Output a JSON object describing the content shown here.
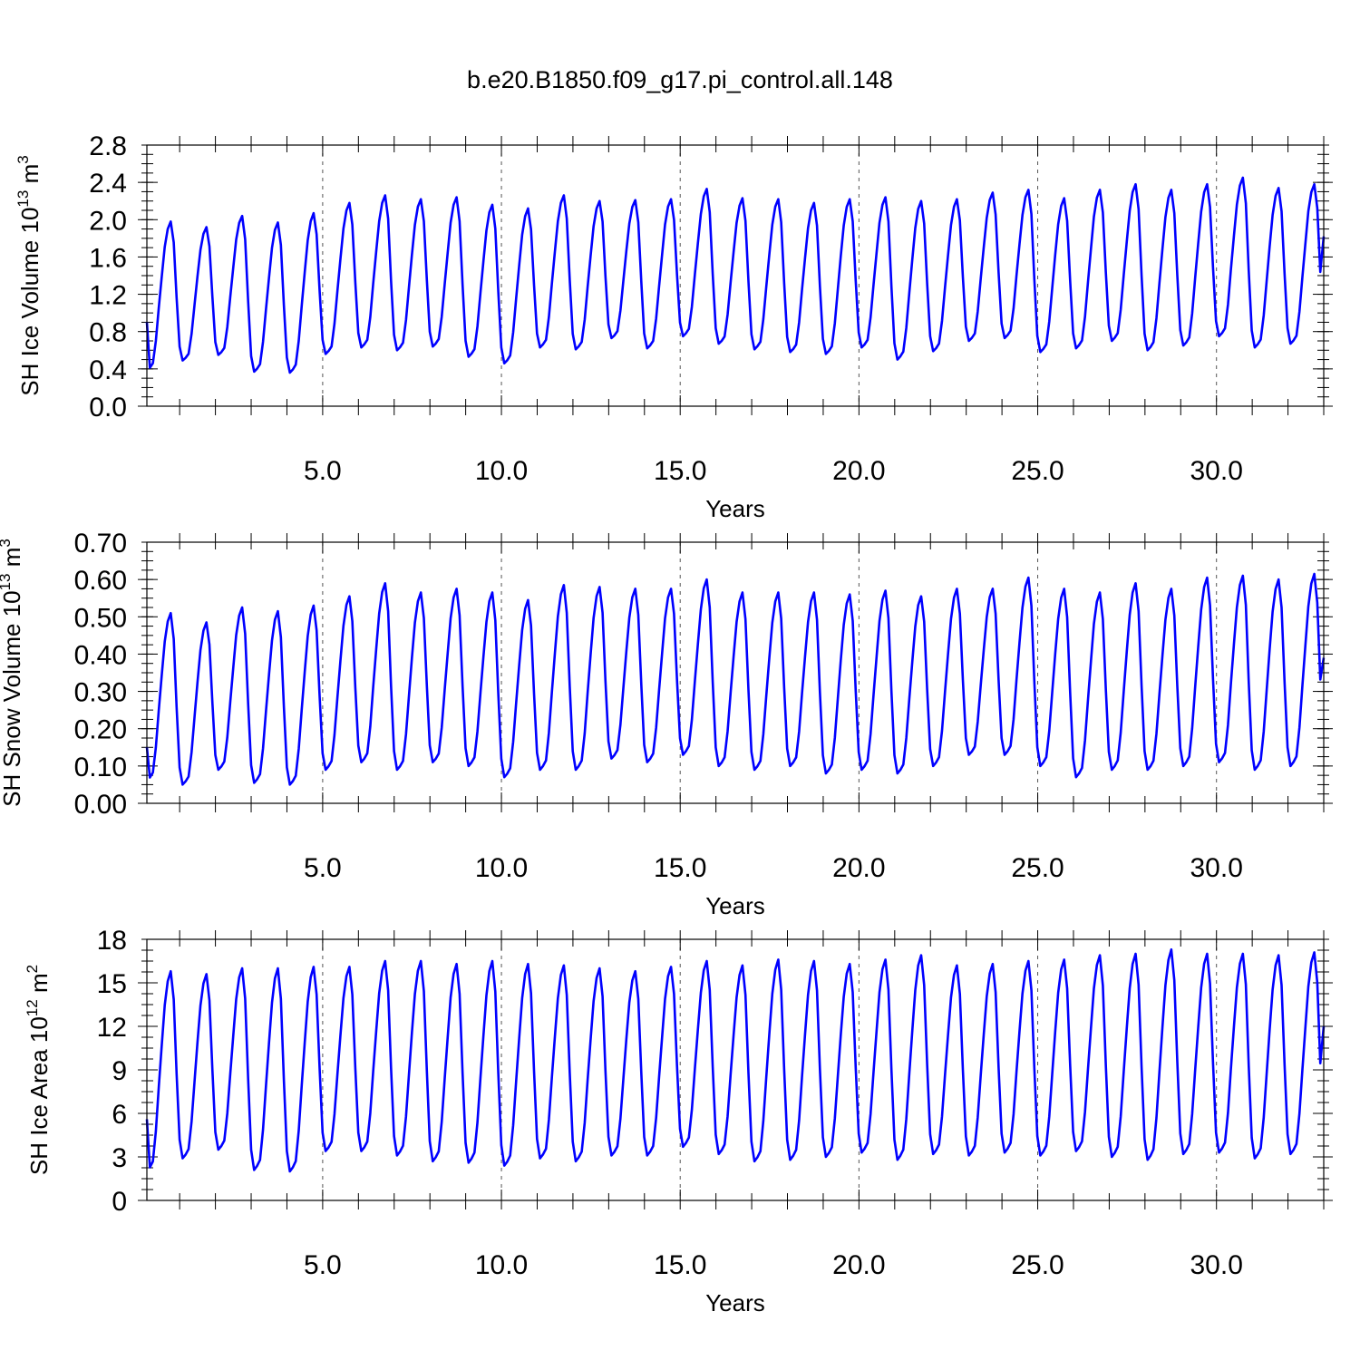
{
  "chart_data": [
    {
      "type": "line",
      "title": "b.e20.B1850.f09_g17.pi_control.all.148",
      "xlabel": "Years",
      "ylabel": "SH Ice Volume 10",
      "ylabel_exp": "13",
      "ylabel_unit": " m",
      "ylabel_unit_exp": "3",
      "xlim": [
        0.083,
        33.0
      ],
      "ylim": [
        0.0,
        2.8
      ],
      "x_ticks": [
        5,
        10,
        15,
        20,
        25,
        30
      ],
      "x_tick_labels": [
        "5.0",
        "10.0",
        "15.0",
        "20.0",
        "25.0",
        "30.0"
      ],
      "y_ticks": [
        0.0,
        0.4,
        0.8,
        1.2,
        1.6,
        2.0,
        2.4,
        2.8
      ],
      "y_tick_labels": [
        "0.0",
        "0.4",
        "0.8",
        "1.2",
        "1.6",
        "2.0",
        "2.4",
        "2.8"
      ],
      "grid": "dashed vertical at labeled x ticks",
      "series_color": "#0000ff",
      "series": [
        {
          "x_start": 0.083,
          "x_step": 0.0833,
          "mins": [
            0.38,
            0.49,
            0.55,
            0.37,
            0.36,
            0.56,
            0.63,
            0.6,
            0.64,
            0.53,
            0.46,
            0.63,
            0.61,
            0.73,
            0.62,
            0.75,
            0.67,
            0.61,
            0.58,
            0.56,
            0.63,
            0.5,
            0.59,
            0.7,
            0.73,
            0.58,
            0.62,
            0.7,
            0.6,
            0.65,
            0.75,
            0.63,
            0.67
          ],
          "maxs": [
            1.98,
            1.92,
            2.04,
            1.97,
            2.07,
            2.18,
            2.26,
            2.22,
            2.24,
            2.16,
            2.12,
            2.26,
            2.2,
            2.21,
            2.22,
            2.33,
            2.23,
            2.22,
            2.18,
            2.22,
            2.24,
            2.2,
            2.22,
            2.29,
            2.32,
            2.23,
            2.32,
            2.38,
            2.32,
            2.38,
            2.45,
            2.34,
            2.38
          ],
          "start_value": 0.9,
          "end_value": 1.82
        }
      ]
    },
    {
      "type": "line",
      "xlabel": "Years",
      "ylabel": "SH Snow Volume 10",
      "ylabel_exp": "13",
      "ylabel_unit": " m",
      "ylabel_unit_exp": "3",
      "xlim": [
        0.083,
        33.0
      ],
      "ylim": [
        0.0,
        0.7
      ],
      "x_ticks": [
        5,
        10,
        15,
        20,
        25,
        30
      ],
      "x_tick_labels": [
        "5.0",
        "10.0",
        "15.0",
        "20.0",
        "25.0",
        "30.0"
      ],
      "y_ticks": [
        0.0,
        0.1,
        0.2,
        0.3,
        0.4,
        0.5,
        0.6,
        0.7
      ],
      "y_tick_labels": [
        "0.00",
        "0.10",
        "0.20",
        "0.30",
        "0.40",
        "0.50",
        "0.60",
        "0.70"
      ],
      "grid": "dashed vertical at labeled x ticks",
      "series_color": "#0000ff",
      "series": [
        {
          "x_start": 0.083,
          "x_step": 0.0833,
          "mins": [
            0.06,
            0.05,
            0.09,
            0.055,
            0.05,
            0.09,
            0.11,
            0.09,
            0.11,
            0.1,
            0.07,
            0.09,
            0.09,
            0.12,
            0.11,
            0.13,
            0.1,
            0.09,
            0.1,
            0.08,
            0.09,
            0.08,
            0.1,
            0.13,
            0.13,
            0.1,
            0.07,
            0.09,
            0.09,
            0.1,
            0.11,
            0.09,
            0.1
          ],
          "maxs": [
            0.51,
            0.485,
            0.525,
            0.515,
            0.53,
            0.555,
            0.59,
            0.565,
            0.575,
            0.565,
            0.545,
            0.585,
            0.58,
            0.575,
            0.575,
            0.6,
            0.565,
            0.565,
            0.565,
            0.56,
            0.57,
            0.555,
            0.575,
            0.575,
            0.605,
            0.575,
            0.565,
            0.59,
            0.575,
            0.605,
            0.61,
            0.6,
            0.615
          ],
          "start_value": 0.15,
          "end_value": 0.39
        }
      ]
    },
    {
      "type": "line",
      "xlabel": "Years",
      "ylabel": "SH Ice Area 10",
      "ylabel_exp": "12",
      "ylabel_unit": " m",
      "ylabel_unit_exp": "2",
      "xlim": [
        0.083,
        33.0
      ],
      "ylim": [
        0,
        18
      ],
      "x_ticks": [
        5,
        10,
        15,
        20,
        25,
        30
      ],
      "x_tick_labels": [
        "5.0",
        "10.0",
        "15.0",
        "20.0",
        "25.0",
        "30.0"
      ],
      "y_ticks": [
        0,
        3,
        6,
        9,
        12,
        15,
        18
      ],
      "y_tick_labels": [
        "0",
        "3",
        "6",
        "9",
        "12",
        "15",
        "18"
      ],
      "grid": "dashed vertical at labeled x ticks",
      "series_color": "#0000ff",
      "series": [
        {
          "x_start": 0.083,
          "x_step": 0.0833,
          "mins": [
            2.0,
            2.9,
            3.5,
            2.1,
            2.0,
            3.4,
            3.4,
            3.1,
            2.7,
            2.6,
            2.4,
            2.9,
            2.7,
            3.1,
            3.1,
            3.7,
            3.2,
            2.7,
            2.8,
            3.0,
            3.3,
            2.8,
            3.2,
            3.1,
            3.3,
            3.1,
            3.4,
            3.0,
            2.8,
            3.2,
            3.3,
            2.9,
            3.2
          ],
          "maxs": [
            15.8,
            15.6,
            16.0,
            16.0,
            16.1,
            16.1,
            16.5,
            16.5,
            16.3,
            16.5,
            16.3,
            16.2,
            16.0,
            15.8,
            16.1,
            16.5,
            16.2,
            16.6,
            16.5,
            16.3,
            16.6,
            16.9,
            16.2,
            16.3,
            16.5,
            16.6,
            16.9,
            17.0,
            17.3,
            17.0,
            17.0,
            16.9,
            17.1
          ],
          "start_value": 5.6,
          "end_value": 12.0
        }
      ]
    }
  ]
}
